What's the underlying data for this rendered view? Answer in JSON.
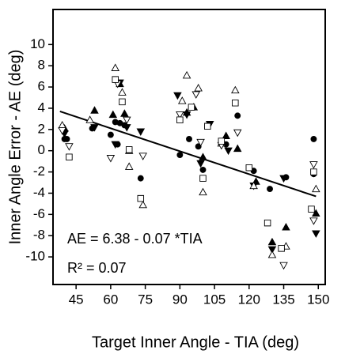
{
  "chart_data": {
    "type": "scatter",
    "x_label": "Target Inner Angle - TIA (deg)",
    "y_label": "Inner Angle Error - AE (deg)",
    "annotations": [
      "AE = 6.38 - 0.07 *TIA",
      "R² = 0.07"
    ],
    "xlim": [
      35,
      153
    ],
    "ylim": [
      -12.6,
      13.3
    ],
    "xticks": [
      45,
      60,
      75,
      90,
      105,
      120,
      135,
      150
    ],
    "yticks": [
      -10,
      -8,
      -6,
      -4,
      -2,
      0,
      2,
      4,
      6,
      8,
      10
    ],
    "fit": {
      "x": [
        38,
        149
      ],
      "y": [
        3.7,
        -4.3
      ],
      "color": "#000000"
    },
    "series": [
      {
        "marker": "circle",
        "filled": true,
        "color": "#000000",
        "x": [
          40,
          41,
          52,
          60,
          62,
          64,
          66,
          63,
          73,
          90,
          94,
          98,
          100,
          110,
          115,
          122,
          129,
          136,
          148,
          148
        ],
        "y": [
          1.1,
          1.1,
          2.1,
          1.5,
          2.7,
          2.6,
          2.4,
          0.6,
          -2.6,
          -0.4,
          1.1,
          0.4,
          -1.8,
          0.6,
          3.3,
          -1.9,
          -3.6,
          -2.5,
          1.1,
          -2.2
        ]
      },
      {
        "marker": "triangle-up",
        "filled": true,
        "color": "#000000",
        "x": [
          40,
          53,
          61,
          64,
          66,
          68,
          93,
          96,
          100,
          110,
          115,
          123,
          130,
          136,
          149
        ],
        "y": [
          2.1,
          3.8,
          3.4,
          6.3,
          3.5,
          0,
          3.6,
          4.1,
          -0.6,
          1.4,
          0.2,
          -2.9,
          -8.6,
          -7.2,
          -5.9
        ]
      },
      {
        "marker": "triangle-down",
        "filled": true,
        "color": "#000000",
        "x": [
          40,
          53,
          62,
          64,
          67,
          73,
          89,
          93,
          99,
          103,
          111,
          122,
          130,
          135,
          149
        ],
        "y": [
          1.6,
          2.2,
          0.6,
          6.4,
          2.2,
          1.8,
          5.2,
          3.4,
          -1.2,
          2.5,
          0,
          -3.3,
          -9.3,
          -2.6,
          -7.8
        ]
      },
      {
        "marker": "triangle-up",
        "filled": false,
        "color": "#000000",
        "x": [
          39,
          51,
          62,
          65,
          68,
          74,
          91,
          93,
          98,
          100,
          108,
          114,
          122,
          130,
          136,
          149
        ],
        "y": [
          2.4,
          2.9,
          7.8,
          5.5,
          -1.5,
          -5.1,
          4.7,
          7.1,
          5.9,
          -3.9,
          0.7,
          5.7,
          -3.3,
          -9.8,
          -9.0,
          -3.6
        ]
      },
      {
        "marker": "triangle-down",
        "filled": false,
        "color": "#000000",
        "x": [
          39,
          42,
          60,
          63,
          67,
          74,
          90,
          97,
          99,
          108,
          115,
          135,
          148,
          148
        ],
        "y": [
          1.9,
          0.4,
          -0.7,
          6.3,
          2.9,
          -0.5,
          3.4,
          5.3,
          0.8,
          0.5,
          1.7,
          -10.8,
          -1.3,
          -6.6
        ]
      },
      {
        "marker": "square",
        "filled": false,
        "color": "#000000",
        "x": [
          42,
          62,
          65,
          68,
          73,
          90,
          95,
          100,
          102,
          108,
          114,
          120,
          128,
          134,
          147,
          148
        ],
        "y": [
          -0.6,
          6.7,
          4.6,
          0.1,
          -4.5,
          2.9,
          4.1,
          -2.6,
          2.3,
          0.9,
          4.5,
          -1.6,
          -6.8,
          -9.2,
          -5.5,
          -2.0
        ]
      }
    ]
  }
}
